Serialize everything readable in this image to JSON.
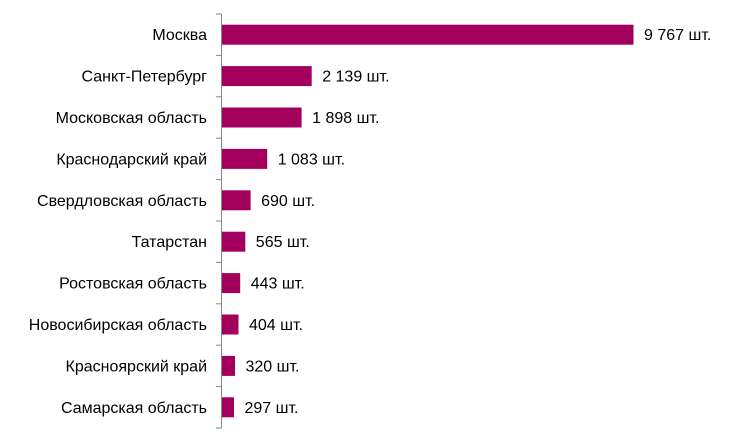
{
  "chart_data": {
    "type": "bar",
    "orientation": "horizontal",
    "title": "",
    "xlabel": "",
    "ylabel": "",
    "unit_suffix": " шт.",
    "bar_color": "#A3005E",
    "grid": false,
    "legend": "none",
    "xlim": [
      0,
      9767
    ],
    "categories": [
      "Москва",
      "Санкт-Петербург",
      "Московская область",
      "Краснодарский край",
      "Свердловская область",
      "Татарстан",
      "Ростовская область",
      "Новосибирская область",
      "Красноярский край",
      "Самарская область"
    ],
    "values": [
      9767,
      2139,
      1898,
      1083,
      690,
      565,
      443,
      404,
      320,
      297
    ],
    "value_labels": [
      "9 767 шт.",
      "2 139 шт.",
      "1 898 шт.",
      "1 083 шт.",
      "690 шт.",
      "565 шт.",
      "443 шт.",
      "404 шт.",
      "320 шт.",
      "297 шт."
    ]
  }
}
